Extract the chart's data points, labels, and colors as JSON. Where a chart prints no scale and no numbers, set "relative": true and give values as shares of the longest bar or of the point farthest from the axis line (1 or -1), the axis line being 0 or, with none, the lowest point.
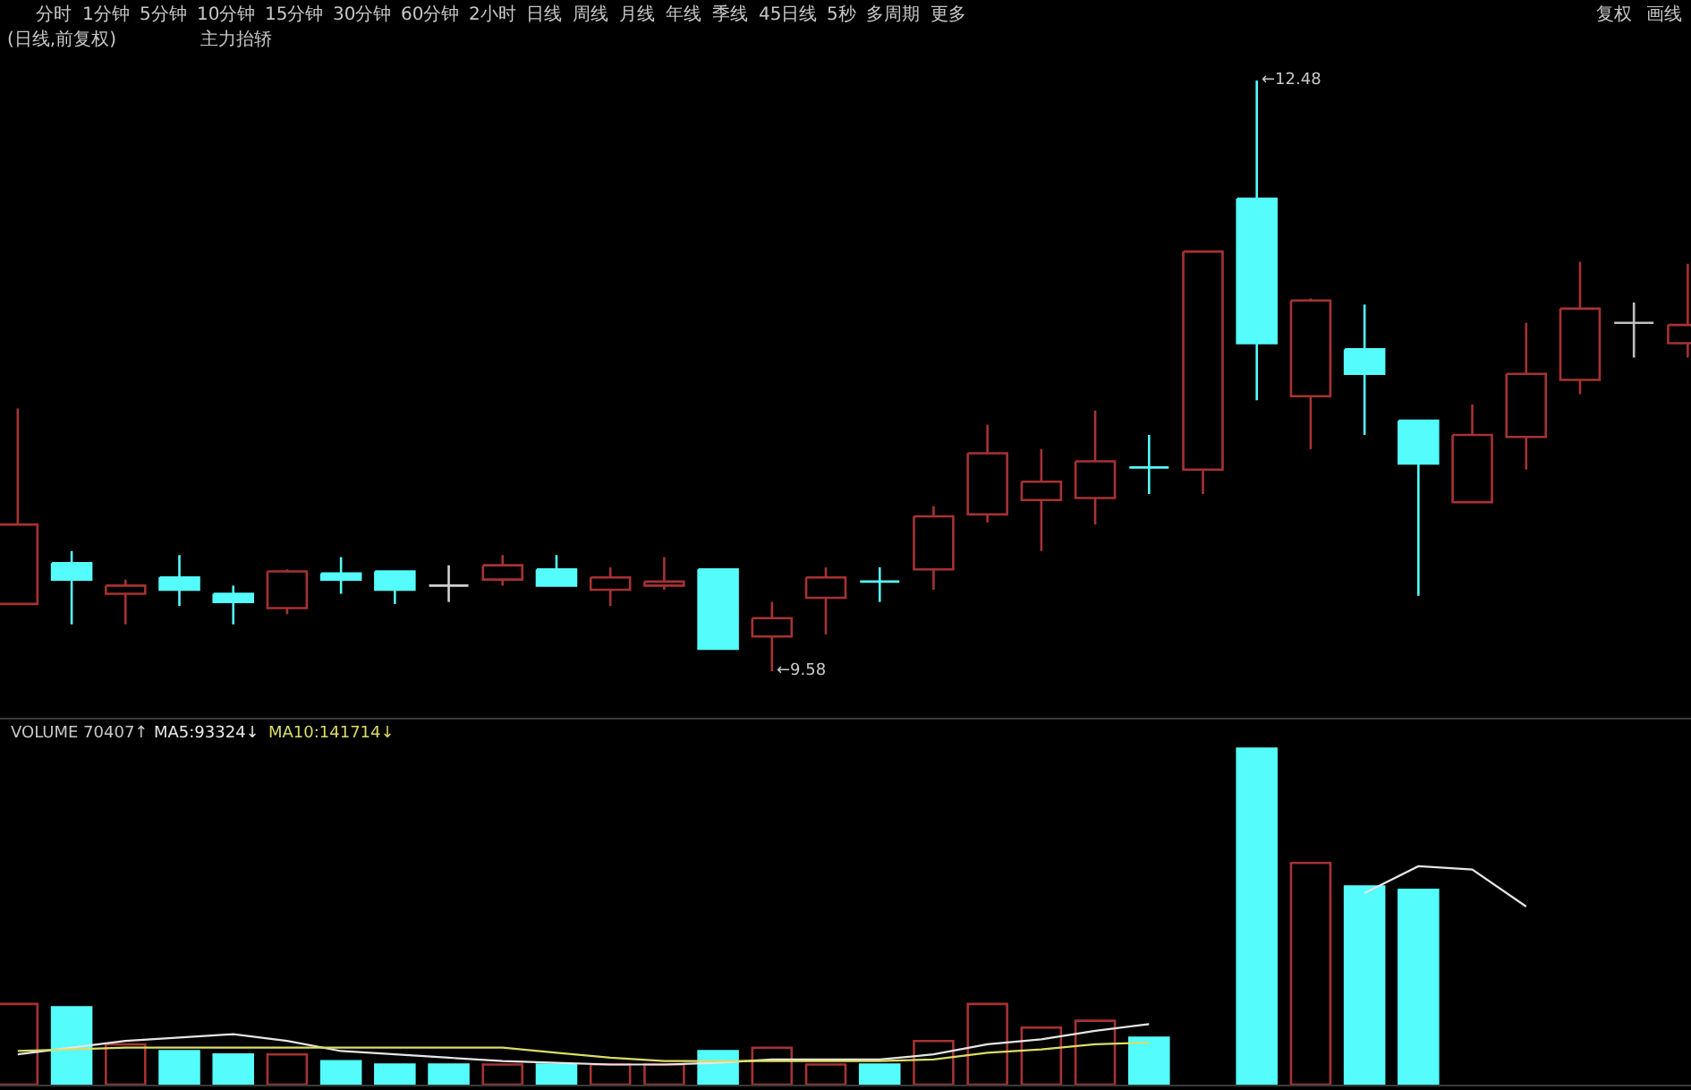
{
  "chart_data": [
    {
      "type": "other",
      "annotations": [
        "分时",
        "1分钟",
        "5分钟",
        "10分钟",
        "15分钟",
        "30分钟",
        "60分钟",
        "2小时",
        "日线",
        "周线",
        "月线",
        "年线",
        "季线",
        "45日线",
        "5秒",
        "多周期",
        "更多",
        "复权",
        "画线"
      ]
    },
    {
      "type": "candlestick",
      "title": "(日线,前复权)",
      "subtitle": "主力抬轿",
      "annotations": [
        "←12.48",
        "←9.58"
      ],
      "categories": [
        null,
        null,
        null,
        null,
        null,
        null,
        null,
        null,
        null,
        null,
        null,
        null,
        null,
        null,
        null,
        null,
        null,
        null,
        null,
        null,
        null,
        null,
        null,
        null,
        null,
        null,
        null,
        null,
        null,
        null,
        null,
        null
      ],
      "ohlc": [
        [
          9.91,
          10.87,
          9.91,
          10.3
        ],
        [
          10.11,
          10.17,
          9.81,
          10.03
        ],
        [
          9.96,
          10.03,
          9.81,
          10.0
        ],
        [
          10.04,
          10.15,
          9.9,
          9.98
        ],
        [
          9.96,
          10.0,
          9.81,
          9.92
        ],
        [
          9.89,
          10.08,
          9.86,
          10.07
        ],
        [
          10.06,
          10.14,
          9.96,
          10.03
        ],
        [
          10.07,
          10.07,
          9.91,
          9.98
        ],
        [
          10.0,
          10.1,
          9.92,
          10.0
        ],
        [
          10.03,
          10.15,
          10.0,
          10.1
        ],
        [
          10.08,
          10.15,
          10.0,
          10.0
        ],
        [
          9.98,
          10.09,
          9.9,
          10.04
        ],
        [
          10.0,
          10.14,
          9.98,
          10.02
        ],
        [
          10.08,
          10.08,
          9.69,
          9.69
        ],
        [
          9.75,
          9.92,
          9.58,
          9.84
        ],
        [
          9.94,
          10.09,
          9.76,
          10.04
        ],
        [
          10.02,
          10.09,
          9.92,
          10.02
        ],
        [
          10.08,
          10.39,
          9.98,
          10.34
        ],
        [
          10.35,
          10.79,
          10.31,
          10.65
        ],
        [
          10.42,
          10.67,
          10.17,
          10.51
        ],
        [
          10.43,
          10.86,
          10.3,
          10.61
        ],
        [
          10.58,
          10.74,
          10.45,
          10.58
        ],
        [
          10.57,
          11.64,
          10.45,
          11.64
        ],
        [
          11.9,
          12.48,
          10.91,
          11.19
        ],
        [
          10.93,
          11.41,
          10.67,
          11.4
        ],
        [
          11.16,
          11.38,
          10.74,
          11.04
        ],
        [
          10.81,
          10.81,
          9.95,
          10.6
        ],
        [
          10.41,
          10.89,
          10.41,
          10.74
        ],
        [
          10.73,
          11.29,
          10.57,
          11.04
        ],
        [
          11.01,
          11.59,
          10.94,
          11.36
        ],
        [
          11.29,
          11.39,
          11.12,
          11.29
        ],
        [
          11.19,
          11.58,
          11.12,
          11.28
        ]
      ],
      "colors": [
        "#a83232",
        "#54fcfc",
        "#a83232",
        "#54fcfc",
        "#54fcfc",
        "#a83232",
        "#54fcfc",
        "#54fcfc",
        "#d2d2d2",
        "#a83232",
        "#54fcfc",
        "#a83232",
        "#a83232",
        "#54fcfc",
        "#a83232",
        "#a83232",
        "#54fcfc",
        "#a83232",
        "#a83232",
        "#a83232",
        "#a83232",
        "#54fcfc",
        "#a83232",
        "#54fcfc",
        "#a83232",
        "#54fcfc",
        "#54fcfc",
        "#a83232",
        "#a83232",
        "#a83232",
        "#c0c0c0",
        "#a83232"
      ]
    },
    {
      "type": "bar",
      "relative": true,
      "annotations": [
        "VOLUME 70407↑",
        "MA5:93324↓",
        "MA10:141714↓"
      ],
      "categories": [
        null,
        null,
        null,
        null,
        null,
        null,
        null,
        null,
        null,
        null,
        null,
        null,
        null,
        null,
        null,
        null,
        null,
        null,
        null,
        null,
        null,
        null,
        null,
        null,
        null,
        null,
        null,
        null,
        null,
        null,
        null,
        null
      ],
      "series": [
        {
          "type": "bar",
          "values": [
            0.24,
            0.23,
            0.12,
            0.1,
            0.09,
            0.09,
            0.07,
            0.06,
            0.06,
            0.06,
            0.06,
            0.06,
            0.06,
            0.1,
            0.11,
            0.06,
            0.06,
            0.13,
            0.24,
            0.17,
            0.19,
            0.14,
            null,
            1,
            0.66,
            0.59,
            0.58,
            null,
            null,
            null,
            null,
            null
          ],
          "colors": [
            "#a83232",
            "#54fcfc",
            "#a83232",
            "#54fcfc",
            "#54fcfc",
            "#a83232",
            "#54fcfc",
            "#54fcfc",
            "#54fcfc",
            "#a83232",
            "#54fcfc",
            "#a83232",
            "#a83232",
            "#54fcfc",
            "#a83232",
            "#a83232",
            "#54fcfc",
            "#a83232",
            "#a83232",
            "#a83232",
            "#a83232",
            "#54fcfc",
            "#a83232",
            "#54fcfc",
            "#a83232",
            "#54fcfc",
            "#54fcfc",
            "#a83232",
            "#a83232",
            "#a83232",
            "#54fcfc",
            "#a83232"
          ]
        },
        {
          "type": "line",
          "color": "#e6e6e6",
          "values": [
            0.09,
            0.11,
            0.13,
            0.14,
            0.15,
            0.13,
            0.1,
            0.09,
            0.08,
            0.07,
            0.065,
            0.06,
            0.06,
            0.065,
            0.075,
            0.075,
            0.075,
            0.09,
            0.12,
            0.135,
            0.16,
            0.18,
            null,
            null,
            null,
            0.57,
            0.65,
            0.64,
            0.53,
            null,
            null,
            null
          ]
        },
        {
          "type": "line",
          "color": "#dcdc64",
          "values": [
            0.1,
            0.105,
            0.11,
            0.11,
            0.11,
            0.11,
            0.11,
            0.11,
            0.11,
            0.11,
            0.095,
            0.08,
            0.07,
            0.07,
            0.07,
            0.07,
            0.07,
            0.075,
            0.095,
            0.105,
            0.12,
            0.125,
            null,
            null,
            null,
            null,
            null,
            null,
            null,
            null,
            null,
            null
          ]
        }
      ]
    }
  ]
}
